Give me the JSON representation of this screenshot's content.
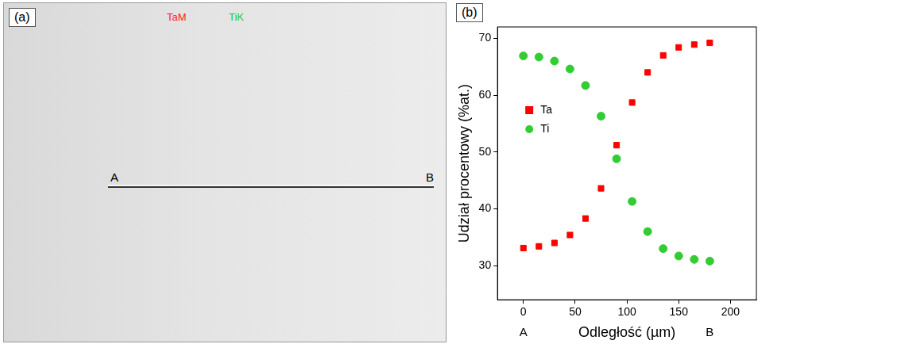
{
  "image_panel": {
    "panel_label": "(a)",
    "labels": [
      {
        "text": "TaM",
        "color": "#ff2020"
      },
      {
        "text": "TiK",
        "color": "#22cc22"
      }
    ],
    "line": {
      "start": "A",
      "end": "B"
    }
  },
  "chart_data": {
    "type": "scatter",
    "panel_label": "(b)",
    "x_label": "Odległość (µm)",
    "y_label": "Udział procentowy (%at.)",
    "x": [
      0,
      15,
      30,
      45,
      60,
      75,
      90,
      105,
      120,
      135,
      150,
      165,
      180
    ],
    "series": [
      {
        "name": "Ta",
        "color": "#ff0000",
        "marker": "square",
        "values": [
          33.1,
          33.4,
          34.0,
          35.4,
          38.3,
          43.6,
          51.2,
          58.7,
          64.0,
          67.0,
          68.4,
          68.9,
          69.2
        ]
      },
      {
        "name": "Ti",
        "color": "#33cc33",
        "marker": "circle",
        "values": [
          66.9,
          66.7,
          66.0,
          64.6,
          61.7,
          56.3,
          48.8,
          41.3,
          36.0,
          33.0,
          31.7,
          31.1,
          30.8
        ]
      }
    ],
    "annotations": [
      {
        "x": 0,
        "text": "A"
      },
      {
        "x": 180,
        "text": "B"
      }
    ],
    "xlim": [
      -25,
      225
    ],
    "xticks": [
      0,
      50,
      100,
      150,
      200
    ],
    "ylim": [
      24,
      72
    ],
    "yticks": [
      30,
      40,
      50,
      60,
      70
    ],
    "grid": false,
    "legend": "upper left"
  }
}
